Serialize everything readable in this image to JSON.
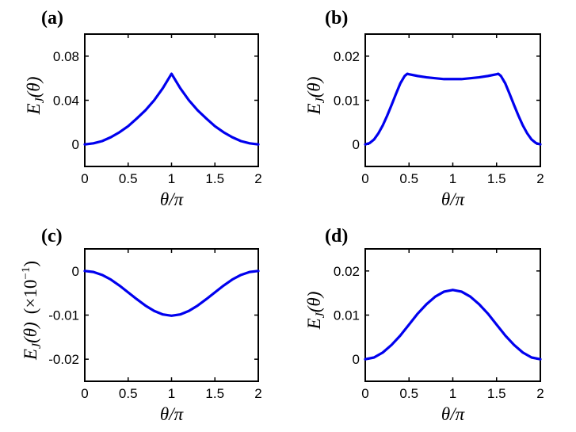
{
  "colors": {
    "series": "#0000ee",
    "axes": "#000000"
  },
  "chart_data": [
    {
      "panel": "(a)",
      "type": "line",
      "xlabel": "θ/π",
      "ylabel": "E_J(θ)",
      "xlim": [
        0,
        2
      ],
      "ylim": [
        -0.02,
        0.1
      ],
      "xticks": [
        0,
        0.5,
        1,
        1.5,
        2
      ],
      "xtick_labels": [
        "0",
        "0.5",
        "1",
        "1.5",
        "2"
      ],
      "yticks": [
        0,
        0.04,
        0.08
      ],
      "ytick_labels": [
        "0",
        "0.04",
        "0.08"
      ],
      "series": [
        {
          "name": "E_J",
          "x": [
            0,
            0.1,
            0.2,
            0.3,
            0.4,
            0.5,
            0.6,
            0.7,
            0.8,
            0.9,
            1.0,
            1.1,
            1.2,
            1.3,
            1.4,
            1.5,
            1.6,
            1.7,
            1.8,
            1.9,
            2.0
          ],
          "y": [
            0,
            0.001,
            0.003,
            0.0065,
            0.011,
            0.0165,
            0.0235,
            0.031,
            0.04,
            0.051,
            0.064,
            0.051,
            0.04,
            0.031,
            0.0235,
            0.0165,
            0.011,
            0.0065,
            0.003,
            0.001,
            0
          ]
        }
      ]
    },
    {
      "panel": "(b)",
      "type": "line",
      "xlabel": "θ/π",
      "ylabel": "E_J(θ)",
      "xlim": [
        0,
        2
      ],
      "ylim": [
        -0.005,
        0.025
      ],
      "xticks": [
        0,
        0.5,
        1,
        1.5,
        2
      ],
      "xtick_labels": [
        "0",
        "0.5",
        "1",
        "1.5",
        "2"
      ],
      "yticks": [
        0,
        0.01,
        0.02
      ],
      "ytick_labels": [
        "0",
        "0.01",
        "0.02"
      ],
      "series": [
        {
          "name": "E_J",
          "x": [
            0,
            0.05,
            0.1,
            0.15,
            0.2,
            0.25,
            0.3,
            0.35,
            0.4,
            0.45,
            0.48,
            0.5,
            0.6,
            0.7,
            0.8,
            0.9,
            1.0,
            1.1,
            1.2,
            1.3,
            1.4,
            1.5,
            1.52,
            1.55,
            1.6,
            1.65,
            1.7,
            1.75,
            1.8,
            1.85,
            1.9,
            1.95,
            2.0
          ],
          "y": [
            0,
            0.0003,
            0.0011,
            0.0025,
            0.0043,
            0.0065,
            0.0089,
            0.0114,
            0.0138,
            0.0155,
            0.016,
            0.0159,
            0.0155,
            0.0152,
            0.015,
            0.0148,
            0.0148,
            0.0148,
            0.015,
            0.0152,
            0.0155,
            0.0159,
            0.016,
            0.0155,
            0.0138,
            0.0114,
            0.0089,
            0.0065,
            0.0043,
            0.0025,
            0.0011,
            0.0003,
            0
          ]
        }
      ]
    },
    {
      "panel": "(c)",
      "type": "line",
      "xlabel": "θ/π",
      "ylabel": "E_J(θ)",
      "ylabel_suffix": "(×10",
      "ylabel_exp": "−1",
      "ylabel_close": ")",
      "xlim": [
        0,
        2
      ],
      "ylim": [
        -0.025,
        0.005
      ],
      "xticks": [
        0,
        0.5,
        1,
        1.5,
        2
      ],
      "xtick_labels": [
        "0",
        "0.5",
        "1",
        "1.5",
        "2"
      ],
      "yticks": [
        0,
        -0.01,
        -0.02
      ],
      "ytick_labels": [
        "0",
        "-0.01",
        "-0.02"
      ],
      "series": [
        {
          "name": "E_J",
          "x": [
            0,
            0.1,
            0.2,
            0.3,
            0.4,
            0.5,
            0.6,
            0.7,
            0.8,
            0.9,
            1.0,
            1.1,
            1.2,
            1.3,
            1.4,
            1.5,
            1.6,
            1.7,
            1.8,
            1.9,
            2.0
          ],
          "y": [
            0,
            -0.00023,
            -0.0009,
            -0.00194,
            -0.00331,
            -0.00485,
            -0.0064,
            -0.00786,
            -0.00906,
            -0.00986,
            -0.01014,
            -0.00986,
            -0.00906,
            -0.00786,
            -0.0064,
            -0.00485,
            -0.00331,
            -0.00194,
            -0.0009,
            -0.00023,
            0
          ]
        }
      ]
    },
    {
      "panel": "(d)",
      "type": "line",
      "xlabel": "θ/π",
      "ylabel": "E_J(θ)",
      "xlim": [
        0,
        2
      ],
      "ylim": [
        -0.005,
        0.025
      ],
      "xticks": [
        0,
        0.5,
        1,
        1.5,
        2
      ],
      "xtick_labels": [
        "0",
        "0.5",
        "1",
        "1.5",
        "2"
      ],
      "yticks": [
        0,
        0.01,
        0.02
      ],
      "ytick_labels": [
        "0",
        "0.01",
        "0.02"
      ],
      "series": [
        {
          "name": "E_J",
          "x": [
            0,
            0.1,
            0.2,
            0.3,
            0.4,
            0.5,
            0.6,
            0.7,
            0.8,
            0.9,
            1.0,
            1.1,
            1.2,
            1.3,
            1.4,
            1.5,
            1.6,
            1.7,
            1.8,
            1.9,
            2.0
          ],
          "y": [
            0,
            0.00039,
            0.00151,
            0.00323,
            0.00535,
            0.00785,
            0.01035,
            0.01247,
            0.01419,
            0.01531,
            0.0157,
            0.01531,
            0.01419,
            0.01247,
            0.01035,
            0.00785,
            0.00535,
            0.00323,
            0.00151,
            0.00039,
            0
          ]
        }
      ]
    }
  ]
}
